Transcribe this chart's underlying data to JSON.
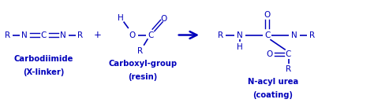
{
  "blue": "#0000bb",
  "fig_width": 4.74,
  "fig_height": 1.31,
  "dpi": 100,
  "xlim": [
    0,
    10
  ],
  "ylim": [
    0,
    2.75
  ],
  "fs_chem": 7.5,
  "fs_label": 7.2,
  "carbodiimide_label1": "Carbodiimide",
  "carbodiimide_label2": "(X-linker)",
  "carboxyl_label1": "Carboxyl-group",
  "carboxyl_label2": "(resin)",
  "product_label1": "N-acyl urea",
  "product_label2": "(coating)"
}
